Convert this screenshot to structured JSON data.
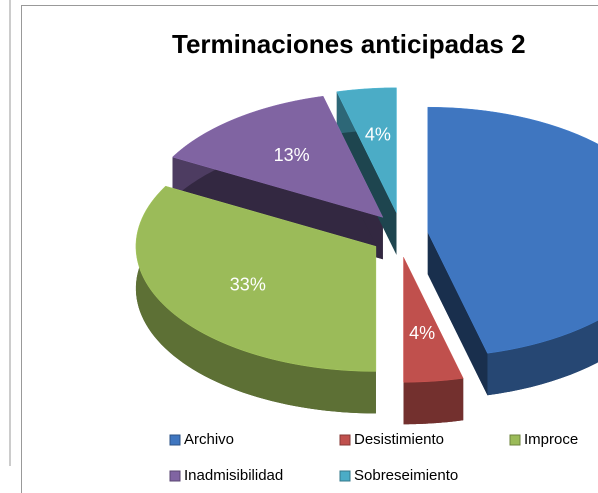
{
  "chart_data": {
    "type": "pie3d",
    "title": "Terminaciones anticipadas 2",
    "categories": [
      "Archivo",
      "Desistimiento",
      "Improce",
      "Inadmisibilidad",
      "Sobreseimiento"
    ],
    "values": [
      46,
      4,
      33,
      13,
      4
    ],
    "value_labels": [
      null,
      "4%",
      "33%",
      "13%",
      "4%"
    ],
    "colors": [
      "#3f76c0",
      "#c0504d",
      "#9bbb59",
      "#8064a2",
      "#4bacc6"
    ],
    "legend": "bottom"
  }
}
